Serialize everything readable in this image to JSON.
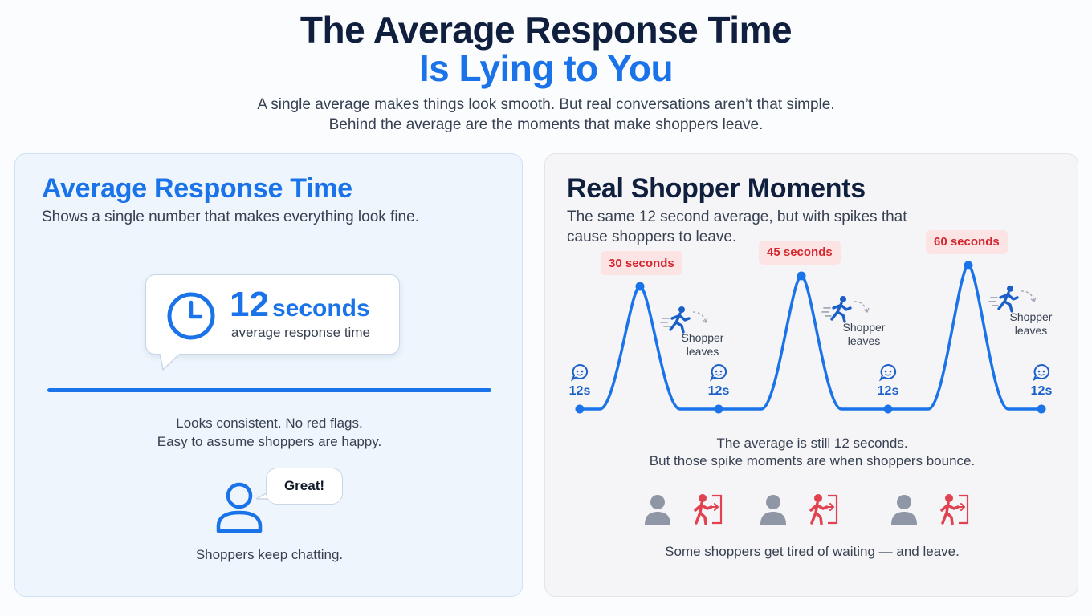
{
  "header": {
    "title_line1": "The Average Response Time",
    "title_line2": "Is Lying to You",
    "subtitle_line1": "A single average makes things look smooth. But real conversations aren’t that simple.",
    "subtitle_line2": "Behind the average are the moments that make shoppers leave."
  },
  "left_panel": {
    "title": "Average Response Time",
    "description": "Shows a single number that makes everything look fine.",
    "stat_value": "12",
    "stat_unit": "seconds",
    "stat_label": "average response time",
    "note_line1": "Looks consistent. No red flags.",
    "note_line2": "Easy to assume shoppers are happy.",
    "speech": "Great!",
    "footer": "Shoppers keep chatting."
  },
  "right_panel": {
    "title": "Real Shopper Moments",
    "description": "The same 12 second average, but with spikes that cause shoppers to leave.",
    "spikes": [
      {
        "label": "30 seconds",
        "value": 30,
        "leave_line1": "Shopper",
        "leave_line2": "leaves"
      },
      {
        "label": "45 seconds",
        "value": 45,
        "leave_line1": "Shopper",
        "leave_line2": "leaves"
      },
      {
        "label": "60 seconds",
        "value": 60,
        "leave_line1": "Shopper",
        "leave_line2": "leaves"
      }
    ],
    "baseline_labels": [
      "12s",
      "12s",
      "12s",
      "12s"
    ],
    "note_line1": "The average is still 12 seconds.",
    "note_line2": "But those spike moments are when shoppers bounce.",
    "footer": "Some shoppers get tired of waiting — and leave."
  },
  "colors": {
    "accent_blue": "#1a73e8",
    "navy": "#0f1f3d",
    "alert_red": "#e0434f",
    "alert_bg": "#fde4e4",
    "person_grey": "#8f97a6"
  }
}
